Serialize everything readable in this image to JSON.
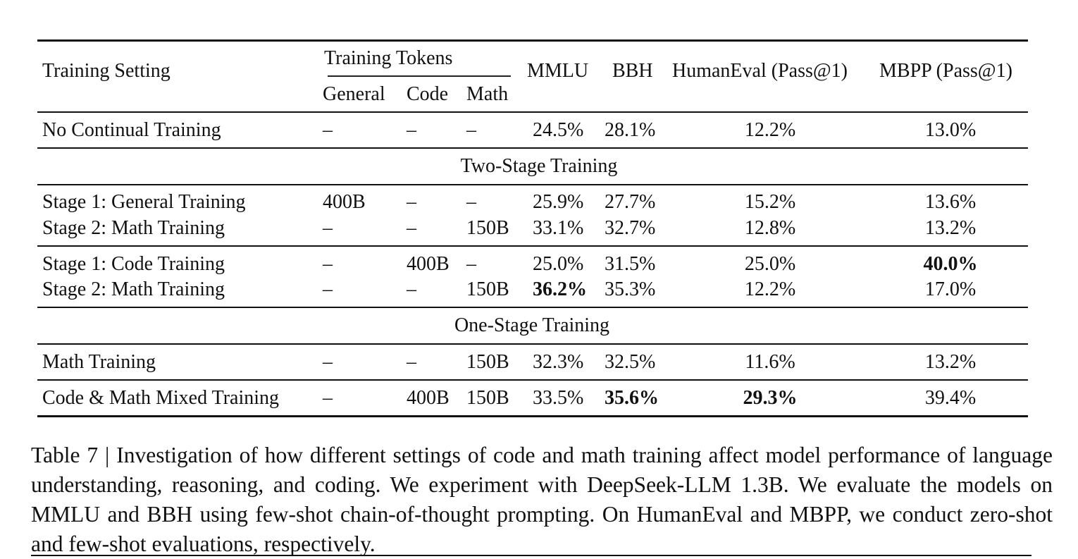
{
  "table": {
    "header": {
      "training_setting": "Training Setting",
      "training_tokens": "Training Tokens",
      "general": "General",
      "code": "Code",
      "math": "Math",
      "mmlu": "MMLU",
      "bbh": "BBH",
      "humaneval": "HumanEval (Pass@1)",
      "mbpp": "MBPP (Pass@1)"
    },
    "rows": [
      {
        "setting": "No Continual Training",
        "general": "–",
        "code": "–",
        "math": "–",
        "mmlu": "24.5%",
        "bbh": "28.1%",
        "humaneval": "12.2%",
        "mbpp": "13.0%"
      },
      {
        "setting": "Stage 1: General Training",
        "general": "400B",
        "code": "–",
        "math": "–",
        "mmlu": "25.9%",
        "bbh": "27.7%",
        "humaneval": "15.2%",
        "mbpp": "13.6%"
      },
      {
        "setting": "Stage 2: Math Training",
        "general": "–",
        "code": "–",
        "math": "150B",
        "mmlu": "33.1%",
        "bbh": "32.7%",
        "humaneval": "12.8%",
        "mbpp": "13.2%"
      },
      {
        "setting": "Stage 1: Code Training",
        "general": "–",
        "code": "400B",
        "math": "–",
        "mmlu": "25.0%",
        "bbh": "31.5%",
        "humaneval": "25.0%",
        "mbpp": "40.0%"
      },
      {
        "setting": "Stage 2: Math Training",
        "general": "–",
        "code": "–",
        "math": "150B",
        "mmlu": "36.2%",
        "bbh": "35.3%",
        "humaneval": "12.2%",
        "mbpp": "17.0%"
      },
      {
        "setting": "Math Training",
        "general": "–",
        "code": "–",
        "math": "150B",
        "mmlu": "32.3%",
        "bbh": "32.5%",
        "humaneval": "11.6%",
        "mbpp": "13.2%"
      },
      {
        "setting": "Code & Math Mixed Training",
        "general": "–",
        "code": "400B",
        "math": "150B",
        "mmlu": "33.5%",
        "bbh": "35.6%",
        "humaneval": "29.3%",
        "mbpp": "39.4%"
      }
    ],
    "sections": {
      "two_stage": "Two-Stage Training",
      "one_stage": "One-Stage Training"
    }
  },
  "caption": "Table 7 | Investigation of how different settings of code and math training affect model performance of language understanding, reasoning, and coding. We experiment with DeepSeek-LLM 1.3B. We evaluate the models on MMLU and BBH using few-shot chain-of-thought prompting. On HumanEval and MBPP, we conduct zero-shot and few-shot evaluations, respectively."
}
